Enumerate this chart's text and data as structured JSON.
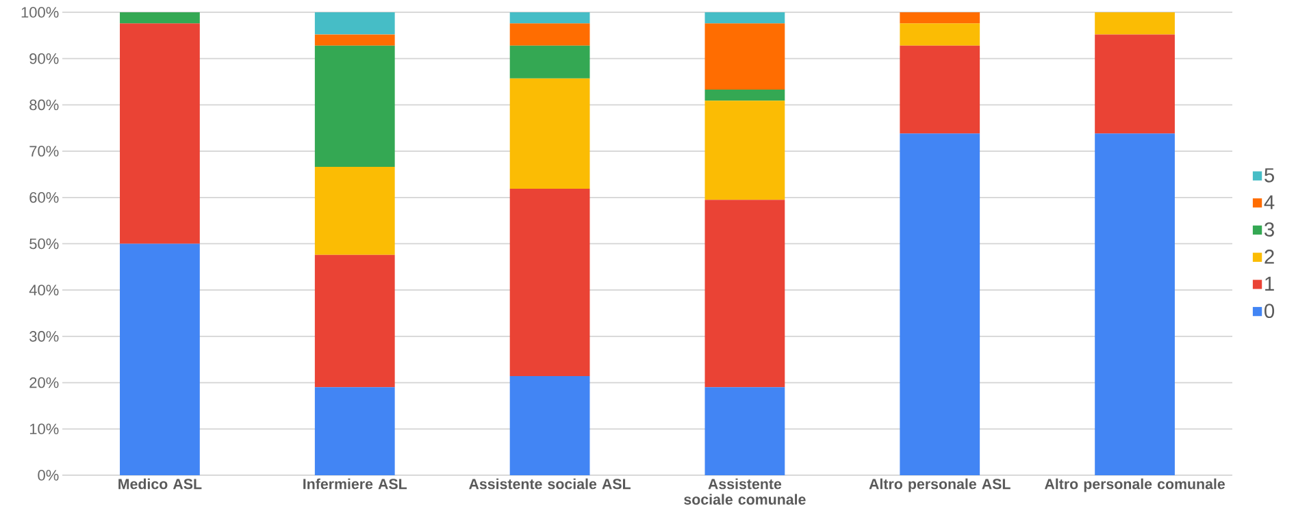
{
  "chart_data": {
    "type": "bar",
    "stacked": true,
    "categories": [
      "Medico ASL",
      "Infermiere ASL",
      "Assistente sociale ASL",
      "Assistente sociale comunale",
      "Altro personale ASL",
      "Altro personale comunale"
    ],
    "series": [
      {
        "name": "0",
        "color": "#4285f4",
        "values": [
          50.0,
          19.0,
          21.4,
          19.0,
          73.8,
          73.8
        ]
      },
      {
        "name": "1",
        "color": "#ea4335",
        "values": [
          47.6,
          28.6,
          40.5,
          40.5,
          19.0,
          21.4
        ]
      },
      {
        "name": "2",
        "color": "#fbbc04",
        "values": [
          0,
          19.0,
          23.8,
          21.4,
          4.8,
          4.8
        ]
      },
      {
        "name": "3",
        "color": "#34a853",
        "values": [
          2.4,
          26.2,
          7.1,
          2.4,
          0,
          0
        ]
      },
      {
        "name": "4",
        "color": "#ff6d01",
        "values": [
          0,
          2.4,
          4.8,
          14.3,
          2.4,
          0
        ]
      },
      {
        "name": "5",
        "color": "#46bdc6",
        "values": [
          0,
          4.8,
          2.4,
          2.4,
          0,
          0
        ]
      }
    ],
    "ylim": [
      0,
      100
    ],
    "yticks": [
      {
        "value": 0,
        "label": "0%"
      },
      {
        "value": 10,
        "label": "10%"
      },
      {
        "value": 20,
        "label": "20%"
      },
      {
        "value": 30,
        "label": "30%"
      },
      {
        "value": 40,
        "label": "40%"
      },
      {
        "value": 50,
        "label": "50%"
      },
      {
        "value": 60,
        "label": "60%"
      },
      {
        "value": 70,
        "label": "70%"
      },
      {
        "value": 80,
        "label": "80%"
      },
      {
        "value": 90,
        "label": "90%"
      },
      {
        "value": 100,
        "label": "100%"
      }
    ],
    "grid": "y",
    "legend": "right"
  }
}
